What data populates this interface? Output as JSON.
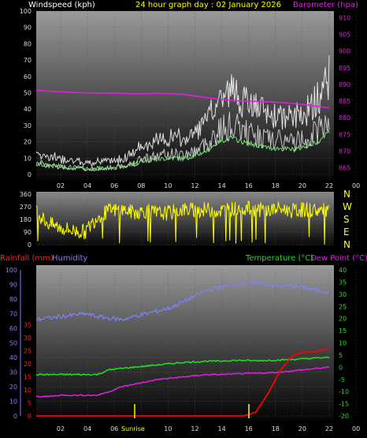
{
  "header": {
    "windspeed_label": "Windspeed (kph)",
    "title": "24 hour graph day : 02 January 2026",
    "barometer_label": "Barometer (hpa)"
  },
  "lower_header": {
    "rainfall_label": "Rainfall (mm)",
    "humidity_label": "Humidity",
    "temperature_label": "Temperature (°C)",
    "dewpoint_label": "Dew Point (°C)"
  },
  "compass": [
    "N",
    "W",
    "S",
    "E",
    "N"
  ],
  "markers": {
    "sunrise": "Sunrise"
  },
  "colors": {
    "windspeed": "#f2f2f2",
    "windgust": "#ffffff",
    "windavg": "#7ae07a",
    "barometer": "#e020e0",
    "direction": "#ffff00",
    "humidity": "#8080ff",
    "temperature": "#22dd22",
    "dewpoint": "#e020e0",
    "rainfall": "#ff0000",
    "title": "#ffff00"
  },
  "chart_data": [
    {
      "type": "line",
      "name": "wind-barometer",
      "x_ticks": [
        "02",
        "04",
        "06",
        "08",
        "10",
        "12",
        "14",
        "16",
        "18",
        "20",
        "22",
        "00"
      ],
      "y_left_ticks": [
        0,
        10,
        20,
        30,
        40,
        50,
        60,
        70,
        80,
        90,
        100
      ],
      "y_right_ticks": [
        865,
        870,
        875,
        880,
        885,
        890,
        895,
        900,
        905,
        910
      ],
      "ylim_left": [
        0,
        100
      ],
      "ylim_right": [
        863,
        912
      ],
      "series": [
        {
          "name": "Windspeed (kph)",
          "values": [
            9,
            7,
            6,
            5,
            4,
            4,
            5,
            6,
            9,
            13,
            14,
            16,
            15,
            18,
            24,
            34,
            38,
            33,
            30,
            27,
            26,
            25,
            28,
            33,
            46
          ]
        },
        {
          "name": "Barometer (hpa)",
          "values": [
            888.2,
            888,
            887.8,
            887.6,
            887.5,
            887.4,
            887.4,
            887.3,
            887.2,
            887.2,
            887.3,
            887.2,
            887,
            886.5,
            886,
            885.6,
            885.2,
            885,
            884.9,
            884.8,
            884.6,
            884.3,
            883.9,
            883.4,
            883
          ]
        }
      ]
    },
    {
      "type": "line",
      "name": "wind-direction",
      "y_ticks": [
        0,
        90,
        180,
        270,
        360
      ],
      "ylim": [
        0,
        360
      ],
      "series": [
        {
          "name": "Direction",
          "values": [
            225,
            150,
            120,
            100,
            90,
            200,
            240,
            250,
            230,
            240,
            220,
            230,
            250,
            245,
            250,
            240,
            255,
            260,
            250,
            245,
            255,
            240,
            250,
            245,
            240
          ]
        }
      ]
    },
    {
      "type": "line",
      "name": "temp-humidity-rain",
      "y_humidity_ticks": [
        0,
        10,
        20,
        30,
        40,
        50,
        60,
        70,
        80,
        90,
        100
      ],
      "y_rain_ticks": [
        0,
        5,
        10,
        15,
        20,
        25,
        30,
        35
      ],
      "y_temp_ticks": [
        40,
        35,
        30,
        25,
        20,
        15,
        10,
        5,
        0,
        -5,
        -10,
        -15,
        -20
      ],
      "ylim_humidity": [
        0,
        100
      ],
      "ylim_temp": [
        -20,
        40
      ],
      "series": [
        {
          "name": "Humidity",
          "values": [
            66,
            67,
            68,
            69,
            70,
            68,
            67,
            66,
            68,
            70,
            72,
            74,
            78,
            82,
            86,
            88,
            90,
            91,
            91,
            90,
            89,
            89,
            88,
            86,
            85
          ]
        },
        {
          "name": "Temperature (°C)",
          "values": [
            -3,
            -3,
            -3,
            -3,
            -3,
            -3,
            -1,
            -0.5,
            0,
            0.5,
            1,
            1.5,
            2,
            2.2,
            2.5,
            2.5,
            2.8,
            2.8,
            2.7,
            2.8,
            3,
            3.2,
            3.5,
            3.8,
            4
          ]
        },
        {
          "name": "Dew Point (°C)",
          "values": [
            -12,
            -12,
            -11.5,
            -11.5,
            -11.5,
            -11.5,
            -10,
            -8,
            -7,
            -6,
            -5,
            -4.5,
            -4,
            -3.5,
            -3,
            -3,
            -2.8,
            -2.6,
            -2.5,
            -2.3,
            -2,
            -1.5,
            -1,
            -0.5,
            0
          ]
        },
        {
          "name": "Rainfall (mm)",
          "values": [
            0,
            0,
            0,
            0,
            0,
            0,
            0,
            0,
            0,
            0,
            0,
            0,
            0,
            0,
            0,
            0,
            0,
            0,
            0.5,
            3,
            6,
            8,
            8.5,
            8.5,
            9
          ]
        }
      ]
    }
  ]
}
